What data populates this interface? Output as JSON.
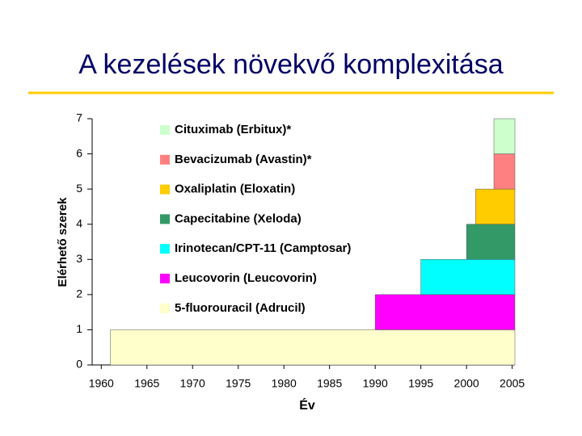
{
  "chart_data": {
    "type": "step-stack",
    "title": "A kezelések növekvő komplexitása",
    "y_label": "Elérhető szerek",
    "x_label": "Év",
    "xlim": [
      1959,
      2005.3
    ],
    "xticks": [
      1960,
      1965,
      1970,
      1975,
      1980,
      1985,
      1990,
      1995,
      2000,
      2005
    ],
    "ylim": [
      0,
      7
    ],
    "yticks": [
      0,
      1,
      2,
      3,
      4,
      5,
      6,
      7
    ],
    "series": [
      {
        "name": "5-fluorouracil (Adrucil)",
        "color": "#ffffcc",
        "x": [
          1961
        ],
        "values": [
          1
        ]
      },
      {
        "name": "Leucovorin (Leucovorin)",
        "color": "#ff00ff",
        "x": [
          1990
        ],
        "values": [
          1
        ]
      },
      {
        "name": "Irinotecan/CPT-11 (Camptosar)",
        "color": "#00ffff",
        "x": [
          1995
        ],
        "values": [
          1
        ]
      },
      {
        "name": "Capecitabine (Xeloda)",
        "color": "#339966",
        "x": [
          2000
        ],
        "values": [
          1
        ]
      },
      {
        "name": "Oxaliplatin (Eloxatin)",
        "color": "#ffcc00",
        "x": [
          2001
        ],
        "values": [
          1
        ]
      },
      {
        "name": "Bevacizumab (Avastin)*",
        "color": "#ff8080",
        "x": [
          2003
        ],
        "values": [
          1
        ]
      },
      {
        "name": "Cituximab (Erbitux)*",
        "color": "#ccffcc",
        "x": [
          2003
        ],
        "values": [
          1
        ]
      }
    ]
  }
}
